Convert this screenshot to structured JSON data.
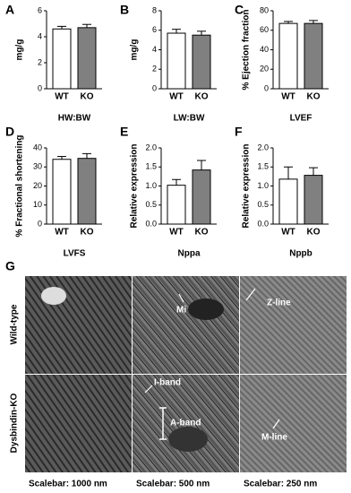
{
  "chart_data": [
    {
      "type": "bar",
      "label": "A",
      "ylabel": "mg/g",
      "xlabel": "HW:BW",
      "categories": [
        "WT",
        "KO"
      ],
      "values": [
        4.6,
        4.7
      ],
      "errors": [
        0.2,
        0.25
      ],
      "colors": [
        "#ffffff",
        "#808080"
      ],
      "ylim": [
        0,
        6
      ],
      "yticks": [
        0,
        2,
        4,
        6
      ]
    },
    {
      "type": "bar",
      "label": "B",
      "ylabel": "mg/g",
      "xlabel": "LW:BW",
      "categories": [
        "WT",
        "KO"
      ],
      "values": [
        5.7,
        5.5
      ],
      "errors": [
        0.4,
        0.4
      ],
      "colors": [
        "#ffffff",
        "#808080"
      ],
      "ylim": [
        0,
        8
      ],
      "yticks": [
        0,
        2,
        4,
        6,
        8
      ]
    },
    {
      "type": "bar",
      "label": "C",
      "ylabel": "% Ejection fraction",
      "xlabel": "LVEF",
      "categories": [
        "WT",
        "KO"
      ],
      "values": [
        67,
        67
      ],
      "errors": [
        2,
        3
      ],
      "colors": [
        "#ffffff",
        "#808080"
      ],
      "ylim": [
        0,
        80
      ],
      "yticks": [
        0,
        20,
        40,
        60,
        80
      ]
    },
    {
      "type": "bar",
      "label": "D",
      "ylabel": "% Fractional shortening",
      "xlabel": "LVFS",
      "categories": [
        "WT",
        "KO"
      ],
      "values": [
        34,
        34.5
      ],
      "errors": [
        1.5,
        2.5
      ],
      "colors": [
        "#ffffff",
        "#808080"
      ],
      "ylim": [
        0,
        40
      ],
      "yticks": [
        0,
        10,
        20,
        30,
        40
      ]
    },
    {
      "type": "bar",
      "label": "E",
      "ylabel": "Relative expression",
      "xlabel": "Nppa",
      "categories": [
        "WT",
        "KO"
      ],
      "values": [
        1.02,
        1.42
      ],
      "errors": [
        0.15,
        0.25
      ],
      "colors": [
        "#ffffff",
        "#808080"
      ],
      "ylim": [
        0,
        2
      ],
      "yticks": [
        {
          "value": 0,
          "label": "0.0"
        },
        {
          "value": 0.5,
          "label": "0.5"
        },
        {
          "value": 1,
          "label": "1.0"
        },
        {
          "value": 1.5,
          "label": "1.5"
        },
        {
          "value": 2,
          "label": "2.0"
        }
      ]
    },
    {
      "type": "bar",
      "label": "F",
      "ylabel": "Relative expression",
      "xlabel": "Nppb",
      "categories": [
        "WT",
        "KO"
      ],
      "values": [
        1.18,
        1.28
      ],
      "errors": [
        0.32,
        0.2
      ],
      "colors": [
        "#ffffff",
        "#808080"
      ],
      "ylim": [
        0,
        2
      ],
      "yticks": [
        {
          "value": 0,
          "label": "0.0"
        },
        {
          "value": 0.5,
          "label": "0.5"
        },
        {
          "value": 1,
          "label": "1.0"
        },
        {
          "value": 1.5,
          "label": "1.5"
        },
        {
          "value": 2,
          "label": "2.0"
        }
      ]
    }
  ],
  "panel_g": {
    "label": "G",
    "rows": [
      "Wild-type",
      "Dysbindin-KO"
    ],
    "annotations": [
      "Mi",
      "Z-line",
      "I-band",
      "A-band",
      "M-line"
    ],
    "scalebars": [
      "Scalebar: 1000 nm",
      "Scalebar: 500 nm",
      "Scalebar: 250 nm"
    ]
  }
}
